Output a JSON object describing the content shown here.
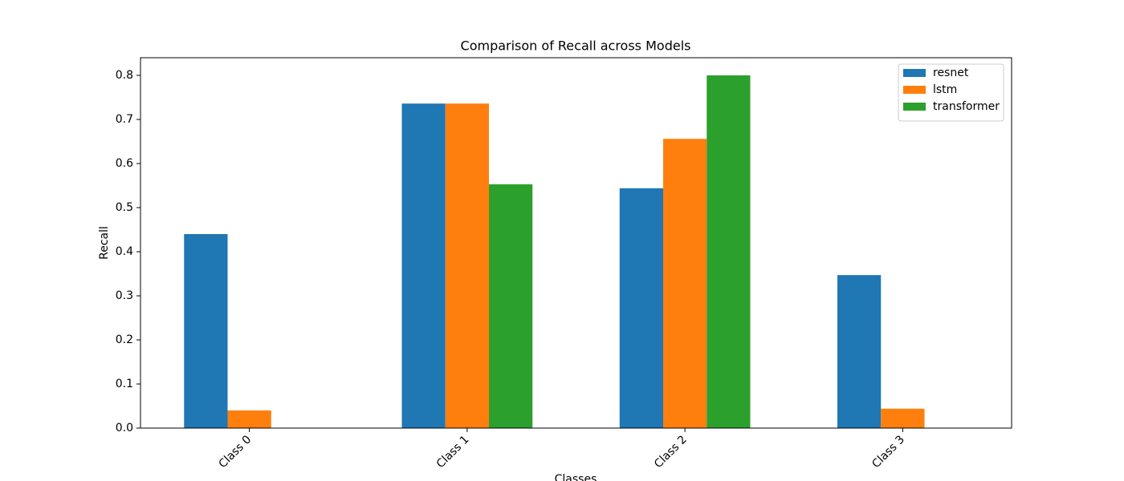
{
  "chart_data": {
    "type": "bar",
    "title": "Comparison of Recall across Models",
    "xlabel": "Classes",
    "ylabel": "Recall",
    "categories": [
      "Class 0",
      "Class 1",
      "Class 2",
      "Class 3"
    ],
    "series": [
      {
        "name": "resnet",
        "color": "#1f77b4",
        "values": [
          0.44,
          0.736,
          0.544,
          0.347
        ]
      },
      {
        "name": "lstm",
        "color": "#ff7f0e",
        "values": [
          0.04,
          0.736,
          0.656,
          0.044
        ]
      },
      {
        "name": "transformer",
        "color": "#2ca02c",
        "values": [
          0,
          0.553,
          0.8,
          0
        ]
      }
    ],
    "ylim": [
      0,
      0.84
    ],
    "yticks": [
      0.0,
      0.1,
      0.2,
      0.3,
      0.4,
      0.5,
      0.6,
      0.7,
      0.8
    ],
    "legend": "upper right"
  }
}
